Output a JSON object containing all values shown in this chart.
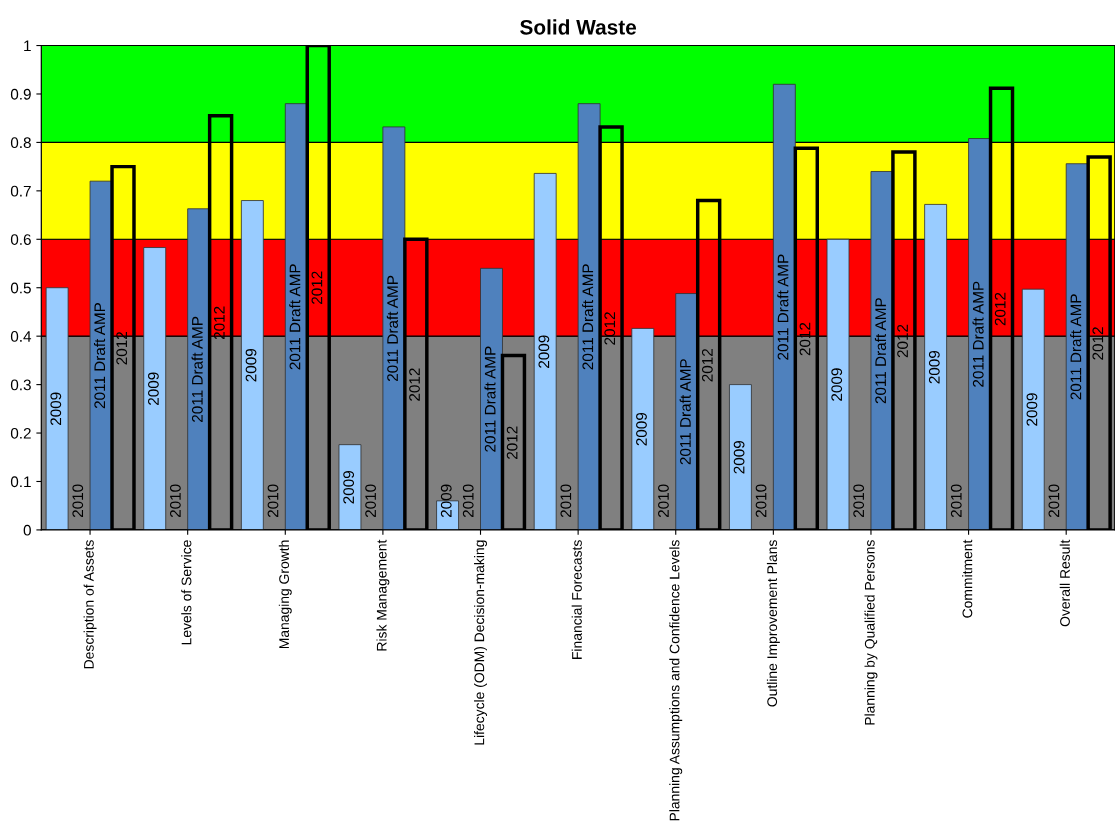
{
  "chart_data": {
    "type": "bar",
    "title": "Solid Waste",
    "categories": [
      "Description of Assets",
      "Levels of Service",
      "Managing Growth",
      "Risk Management",
      "Lifecycle (ODM) Decision-making",
      "Financial Forecasts",
      "Planning Assumptions and Confidence Levels",
      "Outline Improvement Plans",
      "Planning by Qualified Persons",
      "Commitment",
      "Overall Result"
    ],
    "series": [
      {
        "name": "2009",
        "color": "#99ccff",
        "values": [
          0.5,
          0.583,
          0.68,
          0.176,
          0.06,
          0.736,
          0.416,
          0.3,
          0.6,
          0.672,
          0.497
        ]
      },
      {
        "name": "2010",
        "values": [
          0,
          0,
          0,
          0,
          0,
          0,
          0,
          0,
          0,
          0,
          0
        ]
      },
      {
        "name": "2011 Draft AMP",
        "color": "#4f81bd",
        "values": [
          0.72,
          0.663,
          0.88,
          0.832,
          0.54,
          0.88,
          0.488,
          0.92,
          0.74,
          0.808,
          0.756
        ]
      },
      {
        "name": "2012",
        "color": "#000000",
        "line_style": "solid",
        "values": [
          0.75,
          0.855,
          1.0,
          0.6,
          0.36,
          0.832,
          0.68,
          0.788,
          0.78,
          0.912,
          0.77
        ]
      }
    ],
    "ylim": [
      0,
      1
    ],
    "yticks": [
      0,
      0.1,
      0.2,
      0.3,
      0.4,
      0.5,
      0.6,
      0.7,
      0.8,
      0.9,
      1
    ],
    "bands": [
      {
        "axis": "y",
        "from": 0,
        "to": 0.4,
        "color": "#808080"
      },
      {
        "axis": "y",
        "from": 0.4,
        "to": 0.6,
        "color": "#ff0000"
      },
      {
        "axis": "y",
        "from": 0.6,
        "to": 0.8,
        "color": "#ffff00"
      },
      {
        "axis": "y",
        "from": 0.8,
        "to": 1,
        "color": "#00ff00"
      }
    ],
    "grid": false,
    "legend": false
  }
}
